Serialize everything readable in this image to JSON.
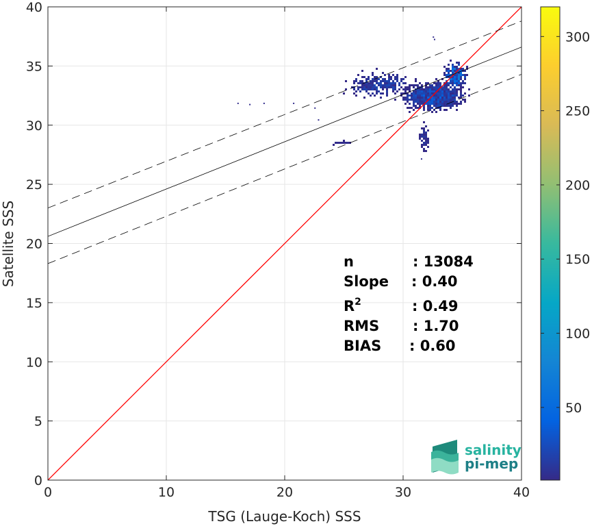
{
  "chart_data": {
    "type": "scatter",
    "subtype": "2d-density-histogram",
    "xlabel": "TSG (Lauge-Koch) SSS",
    "ylabel": "Satellite SSS",
    "xlim": [
      0,
      40
    ],
    "ylim": [
      0,
      40
    ],
    "xticks": [
      0,
      10,
      20,
      30,
      40
    ],
    "yticks": [
      0,
      5,
      10,
      15,
      20,
      25,
      30,
      35,
      40
    ],
    "grid": true,
    "colorbar": {
      "range": [
        1,
        320
      ],
      "ticks": [
        50,
        100,
        150,
        200,
        250,
        300
      ],
      "colormap": "parula",
      "position": "right"
    },
    "lines": [
      {
        "kind": "identity",
        "x": [
          0,
          40
        ],
        "y": [
          0,
          40
        ],
        "color": "#ff0000",
        "style": "solid"
      },
      {
        "kind": "regression",
        "x": [
          0,
          40
        ],
        "y": [
          20.6,
          36.6
        ],
        "color": "#000000",
        "style": "solid"
      },
      {
        "kind": "regression-upper",
        "x": [
          0,
          40
        ],
        "y": [
          23.0,
          38.8
        ],
        "color": "#000000",
        "style": "dashed"
      },
      {
        "kind": "regression-lower",
        "x": [
          0,
          40
        ],
        "y": [
          18.3,
          34.3
        ],
        "color": "#000000",
        "style": "dashed"
      }
    ],
    "density_clusters": [
      {
        "x_center": 32.5,
        "y_center": 32.5,
        "x_spread": 2.2,
        "y_spread": 1.0,
        "count": 900,
        "max_level": 45
      },
      {
        "x_center": 28.0,
        "y_center": 33.5,
        "x_spread": 2.5,
        "y_spread": 0.9,
        "count": 260,
        "max_level": 25
      },
      {
        "x_center": 34.3,
        "y_center": 34.3,
        "x_spread": 0.8,
        "y_spread": 1.0,
        "count": 240,
        "max_level": 85
      },
      {
        "x_center": 31.7,
        "y_center": 29.0,
        "x_spread": 0.3,
        "y_spread": 1.0,
        "count": 60,
        "max_level": 15
      },
      {
        "x_center": 25.0,
        "y_center": 28.6,
        "x_spread": 0.9,
        "y_spread": 0.1,
        "count": 18,
        "max_level": 5
      }
    ],
    "isolated_points": [
      {
        "x": 16.0,
        "y": 31.9
      },
      {
        "x": 17.0,
        "y": 31.8
      },
      {
        "x": 18.2,
        "y": 31.9
      },
      {
        "x": 20.7,
        "y": 31.9
      },
      {
        "x": 22.5,
        "y": 31.5
      },
      {
        "x": 22.8,
        "y": 30.5
      },
      {
        "x": 32.5,
        "y": 37.5
      },
      {
        "x": 32.6,
        "y": 37.3
      },
      {
        "x": 31.5,
        "y": 27.2
      }
    ],
    "stats": [
      {
        "label": "n",
        "value": ": 13084"
      },
      {
        "label": "Slope",
        "value": ": 0.40"
      },
      {
        "label": "R",
        "sup": "2",
        "value": ": 0.49"
      },
      {
        "label": "RMS",
        "value": ": 1.70"
      },
      {
        "label": "BIAS",
        "value": ": 0.60"
      }
    ]
  },
  "logo": {
    "line1": "salinity",
    "line2": "pi-mep",
    "color1": "#27b3a0",
    "color2": "#1d7f86"
  }
}
